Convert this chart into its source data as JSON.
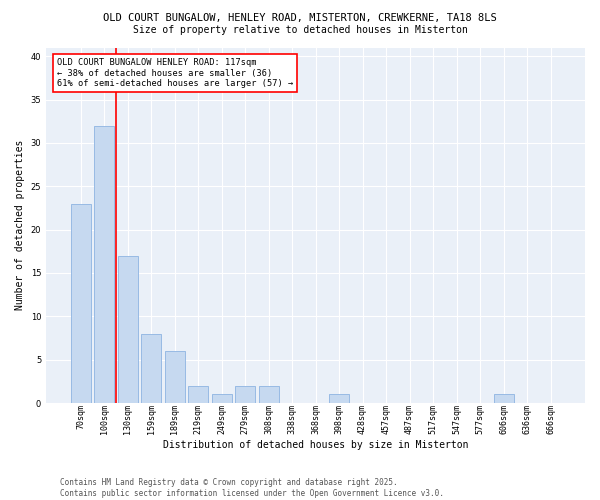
{
  "title1": "OLD COURT BUNGALOW, HENLEY ROAD, MISTERTON, CREWKERNE, TA18 8LS",
  "title2": "Size of property relative to detached houses in Misterton",
  "xlabel": "Distribution of detached houses by size in Misterton",
  "ylabel": "Number of detached properties",
  "bar_labels": [
    "70sqm",
    "100sqm",
    "130sqm",
    "159sqm",
    "189sqm",
    "219sqm",
    "249sqm",
    "279sqm",
    "308sqm",
    "338sqm",
    "368sqm",
    "398sqm",
    "428sqm",
    "457sqm",
    "487sqm",
    "517sqm",
    "547sqm",
    "577sqm",
    "606sqm",
    "636sqm",
    "666sqm"
  ],
  "bar_values": [
    23,
    32,
    17,
    8,
    6,
    2,
    1,
    2,
    2,
    0,
    0,
    1,
    0,
    0,
    0,
    0,
    0,
    0,
    1,
    0,
    0
  ],
  "bar_color": "#c6d9f0",
  "bar_edgecolor": "#8db4e2",
  "bar_width": 0.85,
  "annotation_text": "OLD COURT BUNGALOW HENLEY ROAD: 117sqm\n← 38% of detached houses are smaller (36)\n61% of semi-detached houses are larger (57) →",
  "annotation_box_color": "white",
  "annotation_box_edgecolor": "red",
  "vline_color": "red",
  "ylim": [
    0,
    41
  ],
  "yticks": [
    0,
    5,
    10,
    15,
    20,
    25,
    30,
    35,
    40
  ],
  "bg_color": "#eaf0f8",
  "footer_text": "Contains HM Land Registry data © Crown copyright and database right 2025.\nContains public sector information licensed under the Open Government Licence v3.0.",
  "title_fontsize": 7.5,
  "subtitle_fontsize": 7.0,
  "axis_label_fontsize": 7.0,
  "tick_fontsize": 6.0,
  "annotation_fontsize": 6.2,
  "footer_fontsize": 5.5,
  "ylabel_fontsize": 7.0
}
